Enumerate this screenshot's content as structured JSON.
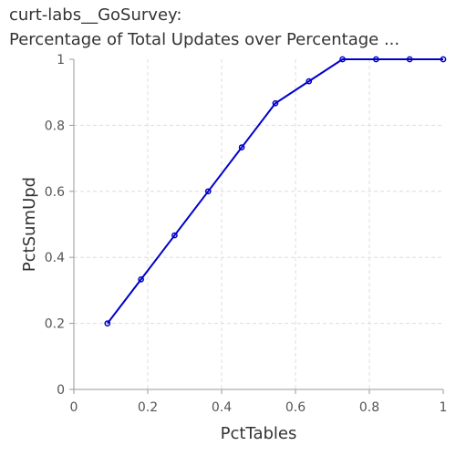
{
  "chart_data": {
    "type": "line",
    "title_lines": [
      "curt-labs__GoSurvey:",
      "Percentage of Total Updates over Percentage ..."
    ],
    "xlabel": "PctTables",
    "ylabel": "PctSumUpd",
    "xlim": [
      0,
      1
    ],
    "ylim": [
      0,
      1
    ],
    "xticks": [
      0,
      0.2,
      0.4,
      0.6,
      0.8,
      1
    ],
    "yticks": [
      0,
      0.2,
      0.4,
      0.6,
      0.8,
      1
    ],
    "grid": true,
    "series": [
      {
        "color": "#0000cc",
        "x": [
          0.0909,
          0.1818,
          0.2727,
          0.3636,
          0.4545,
          0.5455,
          0.6364,
          0.7273,
          0.8182,
          0.9091,
          1.0
        ],
        "y": [
          0.2,
          0.3333,
          0.4667,
          0.6,
          0.7333,
          0.8667,
          0.9333,
          1.0,
          1.0,
          1.0,
          1.0
        ]
      }
    ]
  }
}
